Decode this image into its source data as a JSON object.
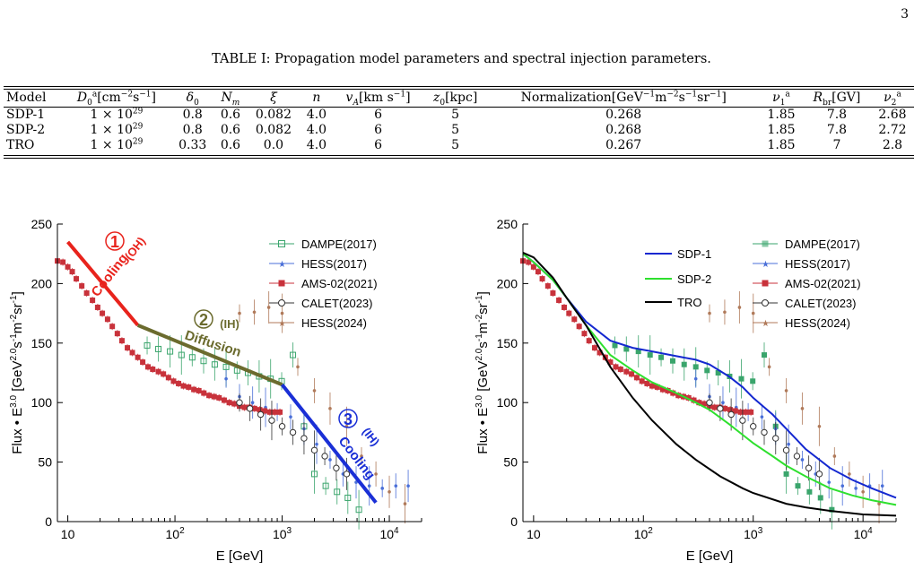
{
  "page_number": "3",
  "table": {
    "caption": "TABLE I: Propagation model parameters and spectral injection parameters.",
    "headers": [
      "Model",
      "D0a[cm−2s−1]",
      "δ0",
      "Nm",
      "ξ",
      "n",
      "vA[km s−1]",
      "z0[kpc]",
      "Normalization[GeV−1m−2s−1sr−1]",
      "ν1a",
      "Rbr[GV]",
      "ν2a"
    ],
    "rows": [
      [
        "SDP-1",
        "1 × 10^29",
        "0.8",
        "0.6",
        "0.082",
        "4.0",
        "6",
        "5",
        "0.268",
        "1.85",
        "7.8",
        "2.68"
      ],
      [
        "SDP-2",
        "1 × 10^29",
        "0.8",
        "0.6",
        "0.082",
        "4.0",
        "6",
        "5",
        "0.268",
        "1.85",
        "7.8",
        "2.72"
      ],
      [
        "TRO",
        "1 × 10^29",
        "0.33",
        "0.6",
        "0.0",
        "4.0",
        "6",
        "5",
        "0.267",
        "1.85",
        "7",
        "2.8"
      ]
    ]
  },
  "colors": {
    "dampe": "#3aa56c",
    "hess2017": "#4a6fd8",
    "ams": "#c8323b",
    "calet": "#333333",
    "hess2024": "#b07a5a",
    "cooling_oh": "#e8231c",
    "diffusion_ih": "#6b6b2e",
    "cooling_ih": "#1a2fd6",
    "sdp1": "#1428d0",
    "sdp2": "#2ee02e",
    "tro": "#000000"
  },
  "figures": {
    "xlabel": "E [GeV]",
    "ylabel": "Flux • E^3.0 [GeV^2.0 s^-1 m^-2 sr^-1]",
    "y_ticks": [
      "0",
      "50",
      "100",
      "150",
      "200",
      "250"
    ],
    "x_ticks": [
      "10",
      "10^2",
      "10^3",
      "10^4"
    ],
    "legend": [
      "DAMPE(2017)",
      "HESS(2017)",
      "AMS-02(2021)",
      "CALET(2023)",
      "HESS(2024)"
    ],
    "model_legend": [
      "SDP-1",
      "SDP-2",
      "TRO"
    ],
    "annotations": {
      "a1_num": "1",
      "a1_tag": "(OH)",
      "a1_word": "Cooling",
      "a2_num": "2",
      "a2_tag": "(IH)",
      "a2_word": "Diffusion",
      "a3_num": "3",
      "a3_tag": "(IH)",
      "a3_word": "Cooling"
    }
  },
  "chart_data": [
    {
      "type": "scatter",
      "xscale": "log",
      "xlim": [
        8,
        20000
      ],
      "ylim": [
        0,
        250
      ],
      "xlabel": "E [GeV]",
      "ylabel": "Flux • E^3.0 [GeV^2.0 s^-1 m^-2 sr^-1]",
      "legend_position": "top-right",
      "series": [
        {
          "name": "DAMPE(2017)",
          "x": [
            55,
            70,
            90,
            115,
            145,
            185,
            235,
            300,
            380,
            480,
            610,
            780,
            990,
            1260,
            1600,
            2000,
            2550,
            3250,
            4100,
            5200
          ],
          "y": [
            148,
            145,
            143,
            140,
            138,
            135,
            132,
            130,
            127,
            125,
            122,
            120,
            118,
            140,
            80,
            40,
            30,
            25,
            20,
            10
          ]
        },
        {
          "name": "HESS(2017)",
          "x": [
            300,
            400,
            530,
            700,
            900,
            1200,
            1600,
            2100,
            2800,
            3700,
            4900,
            6500,
            8600,
            11500,
            15000
          ],
          "y": [
            120,
            105,
            100,
            96,
            92,
            88,
            78,
            65,
            52,
            40,
            33,
            30,
            28,
            30,
            30
          ]
        },
        {
          "name": "AMS-02(2021)",
          "x": [
            8,
            9,
            10,
            11,
            12,
            13.5,
            15,
            17,
            19,
            21,
            23.5,
            26,
            29,
            32,
            36,
            40,
            45,
            50,
            56,
            62,
            70,
            78,
            87,
            97,
            108,
            120,
            134,
            150,
            167,
            186,
            208,
            232,
            258,
            288,
            321,
            358,
            400,
            445,
            496,
            553,
            617,
            688,
            767,
            855,
            953
          ],
          "y": [
            219,
            218,
            214,
            210,
            204,
            198,
            192,
            186,
            180,
            175,
            170,
            164,
            158,
            152,
            146,
            142,
            138,
            134,
            130,
            128,
            126,
            124,
            121,
            118,
            116,
            114,
            113,
            111,
            110,
            108,
            106,
            105,
            104,
            102,
            100,
            99,
            97,
            96,
            96,
            95,
            94,
            93,
            92,
            92,
            92
          ]
        },
        {
          "name": "CALET(2023)",
          "x": [
            400,
            500,
            630,
            800,
            1000,
            1260,
            1600,
            2000,
            2500,
            3200,
            4000
          ],
          "y": [
            100,
            95,
            90,
            85,
            80,
            75,
            70,
            60,
            55,
            45,
            40
          ]
        },
        {
          "name": "HESS(2024)",
          "x": [
            400,
            550,
            750,
            1000,
            1400,
            2000,
            2800,
            4000,
            5500,
            7500,
            10000,
            14000
          ],
          "y": [
            175,
            176,
            180,
            175,
            130,
            110,
            95,
            80,
            55,
            40,
            25,
            15
          ]
        }
      ],
      "lines": [
        {
          "name": "Cooling (OH)",
          "x": [
            10,
            45
          ],
          "y": [
            235,
            165
          ]
        },
        {
          "name": "Diffusion (IH)",
          "x": [
            45,
            1000
          ],
          "y": [
            165,
            115
          ]
        },
        {
          "name": "Cooling (IH)",
          "x": [
            1000,
            7500
          ],
          "y": [
            115,
            16
          ]
        }
      ]
    },
    {
      "type": "line",
      "xscale": "log",
      "xlim": [
        8,
        20000
      ],
      "ylim": [
        0,
        250
      ],
      "xlabel": "E [GeV]",
      "ylabel": "Flux • E^3.0 [GeV^2.0 s^-1 m^-2 sr^-1]",
      "legend_position": "top",
      "series": [
        {
          "name": "SDP-1",
          "x": [
            8,
            10,
            15,
            20,
            30,
            50,
            80,
            120,
            200,
            300,
            400,
            600,
            800,
            1000,
            1500,
            2000,
            3000,
            5000,
            8000,
            12000,
            20000
          ],
          "y": [
            225,
            218,
            203,
            188,
            168,
            152,
            146,
            143,
            139,
            136,
            132,
            122,
            113,
            104,
            90,
            78,
            61,
            45,
            35,
            28,
            20
          ]
        },
        {
          "name": "SDP-2",
          "x": [
            8,
            10,
            15,
            20,
            30,
            50,
            80,
            120,
            200,
            300,
            400,
            600,
            800,
            1000,
            1500,
            2000,
            3000,
            5000,
            8000,
            12000,
            20000
          ],
          "y": [
            225,
            218,
            203,
            188,
            165,
            140,
            127,
            117,
            108,
            100,
            94,
            82,
            73,
            66,
            55,
            47,
            38,
            28,
            22,
            18,
            14
          ]
        },
        {
          "name": "TRO",
          "x": [
            8,
            10,
            15,
            20,
            30,
            50,
            80,
            120,
            200,
            300,
            500,
            800,
            1000,
            2000,
            3000,
            5000,
            10000,
            20000
          ],
          "y": [
            226,
            222,
            205,
            188,
            165,
            130,
            104,
            85,
            65,
            52,
            38,
            28,
            24,
            15,
            12,
            9,
            6,
            5
          ]
        }
      ]
    }
  ]
}
